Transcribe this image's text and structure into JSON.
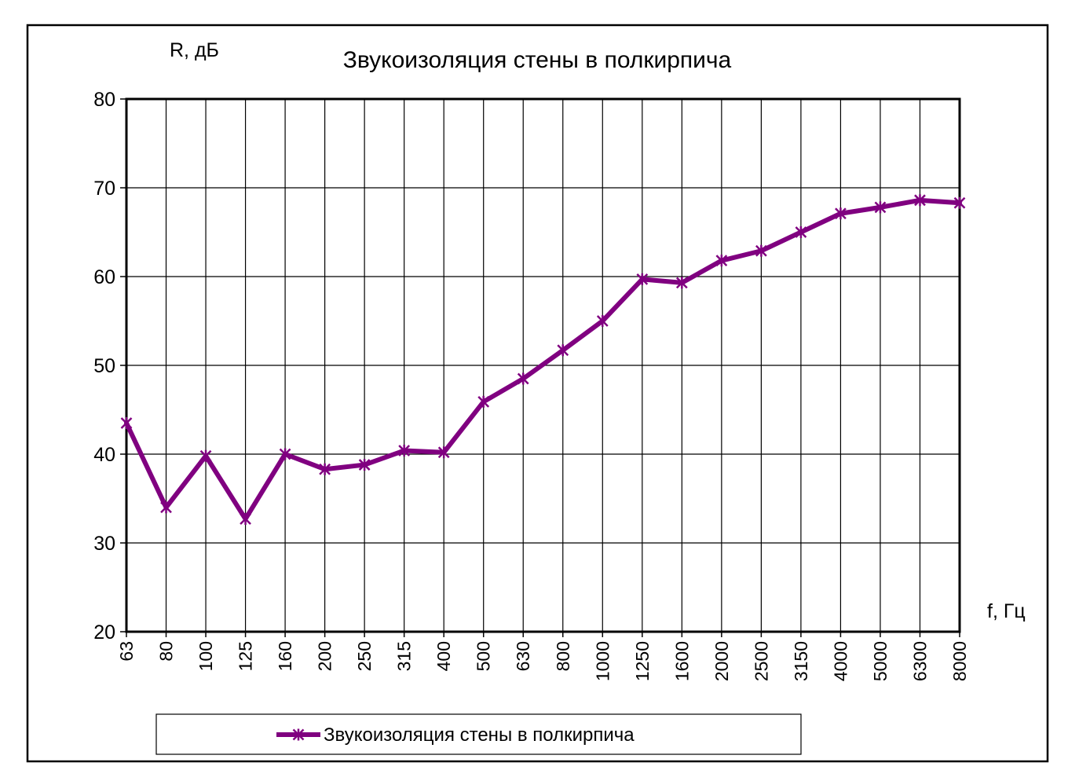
{
  "chart_data": {
    "type": "line",
    "title": "Звукоизоляция стены в полкирпича",
    "ylabel": "R, дБ",
    "xlabel": "f, Гц",
    "ylim": [
      20,
      80
    ],
    "yticks": [
      "20",
      "30",
      "40",
      "50",
      "60",
      "70",
      "80"
    ],
    "categories": [
      "63",
      "80",
      "100",
      "125",
      "160",
      "200",
      "250",
      "315",
      "400",
      "500",
      "630",
      "800",
      "1000",
      "1250",
      "1600",
      "2000",
      "2500",
      "3150",
      "4000",
      "5000",
      "6300",
      "8000"
    ],
    "series": [
      {
        "name": "Звукоизоляция стены в полкирпича",
        "color": "#800080",
        "marker": "asterisk",
        "values": [
          43.5,
          34.0,
          39.8,
          32.7,
          40.0,
          38.3,
          38.8,
          40.4,
          40.2,
          45.9,
          48.5,
          51.7,
          55.0,
          59.7,
          59.3,
          61.8,
          62.9,
          65.0,
          67.1,
          67.8,
          68.6,
          68.3
        ]
      }
    ],
    "grid": true,
    "legend": "bottom"
  }
}
